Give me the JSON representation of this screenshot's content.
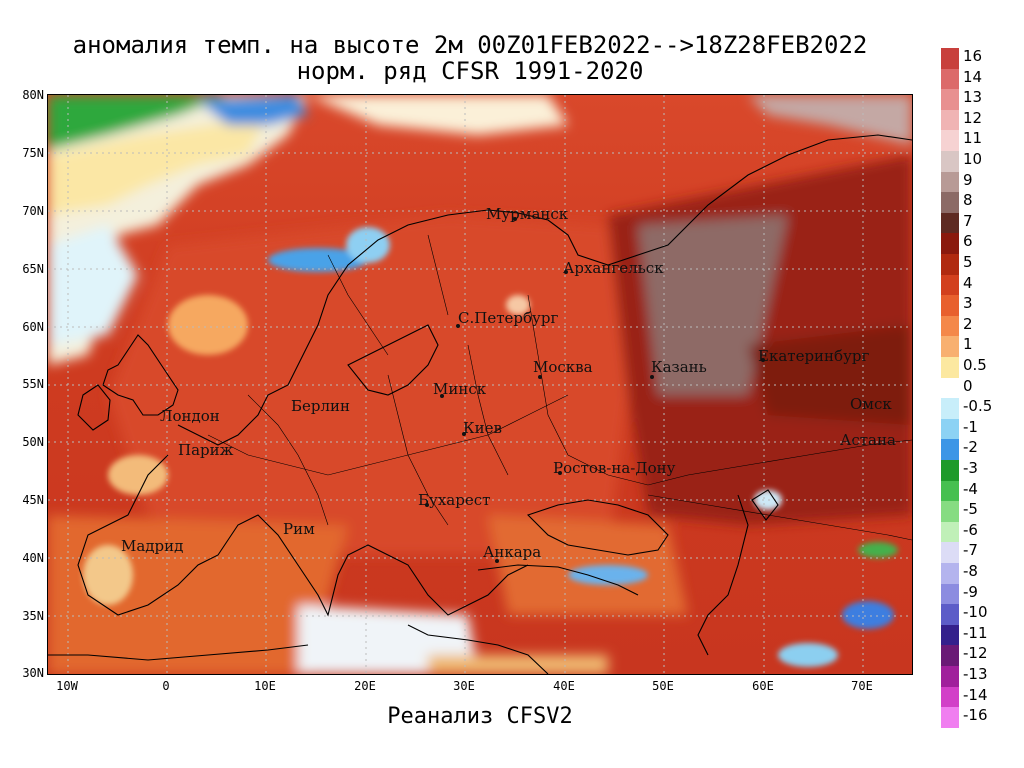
{
  "title": {
    "line1": "аномалия темп. на высоте 2м 00Z01FEB2022-->18Z28FEB2022",
    "line2": "норм. ряд CFSR 1991-2020"
  },
  "footer": "Реанализ CFSV2",
  "axes": {
    "lat_labels": [
      "80N",
      "75N",
      "70N",
      "65N",
      "60N",
      "55N",
      "50N",
      "45N",
      "40N",
      "35N",
      "30N"
    ],
    "lon_labels": [
      "10W",
      "0",
      "10E",
      "20E",
      "30E",
      "40E",
      "50E",
      "60E",
      "70E"
    ]
  },
  "cities": [
    {
      "name": "Мурманск"
    },
    {
      "name": "Архангельск"
    },
    {
      "name": "С.Петербург"
    },
    {
      "name": "Москва"
    },
    {
      "name": "Казань"
    },
    {
      "name": "Екатеринбург"
    },
    {
      "name": "Омск"
    },
    {
      "name": "Астана"
    },
    {
      "name": "Минск"
    },
    {
      "name": "Киев"
    },
    {
      "name": "Берлин"
    },
    {
      "name": "Лондон"
    },
    {
      "name": "Париж"
    },
    {
      "name": "Ростов-на-Дону"
    },
    {
      "name": "Бухарест"
    },
    {
      "name": "Рим"
    },
    {
      "name": "Мадрид"
    },
    {
      "name": "Анкара"
    }
  ],
  "colorbar": {
    "labels": [
      "16",
      "14",
      "13",
      "12",
      "11",
      "10",
      "9",
      "8",
      "7",
      "6",
      "5",
      "4",
      "3",
      "2",
      "1",
      "0.5",
      "0",
      "-0.5",
      "-1",
      "-2",
      "-3",
      "-4",
      "-5",
      "-6",
      "-7",
      "-8",
      "-9",
      "-10",
      "-11",
      "-12",
      "-13",
      "-14",
      "-16"
    ],
    "colors": [
      "#c8403c",
      "#dc6a6a",
      "#e89090",
      "#f0b4b4",
      "#f6d2d2",
      "#d9c6c4",
      "#b89a96",
      "#8c6a66",
      "#5e2a22",
      "#8a1a0e",
      "#b02a10",
      "#d2401e",
      "#e8602e",
      "#f4884a",
      "#f8b070",
      "#fce8a0",
      "#ffffff",
      "#c8eefa",
      "#8cd2f4",
      "#3c96e6",
      "#1e9a2a",
      "#46c050",
      "#86dc82",
      "#c0f0b8",
      "#dcdcf6",
      "#b4b4ee",
      "#8c8ce0",
      "#5c5cc8",
      "#34208c",
      "#6a1a76",
      "#a0209c",
      "#d240c8",
      "#f07ef0"
    ]
  }
}
